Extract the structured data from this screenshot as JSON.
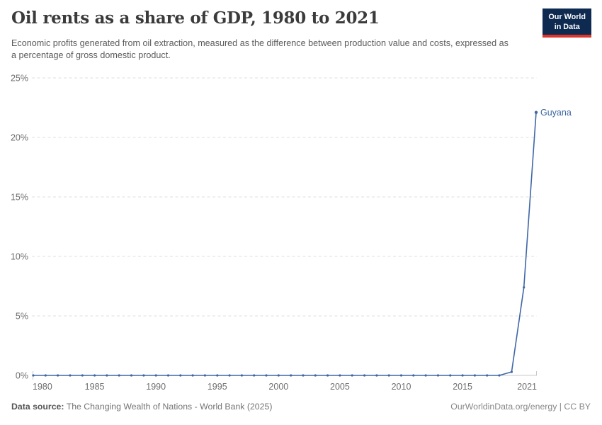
{
  "header": {
    "title": "Oil rents as a share of GDP, 1980 to 2021",
    "subtitle": "Economic profits generated from oil extraction, measured as the difference between production value and costs, expressed as a percentage of gross domestic product."
  },
  "logo": {
    "line1": "Our World",
    "line2": "in Data",
    "bg_color": "#0f2a51",
    "accent_color": "#dc352b"
  },
  "footer": {
    "source_label": "Data source:",
    "source_text": " The Changing Wealth of Nations - World Bank (2025)",
    "credit": "OurWorldinData.org/energy | CC BY"
  },
  "chart_data": {
    "type": "line",
    "title": "Oil rents as a share of GDP, 1980 to 2021",
    "xlabel": "",
    "ylabel": "",
    "x": [
      1980,
      1981,
      1982,
      1983,
      1984,
      1985,
      1986,
      1987,
      1988,
      1989,
      1990,
      1991,
      1992,
      1993,
      1994,
      1995,
      1996,
      1997,
      1998,
      1999,
      2000,
      2001,
      2002,
      2003,
      2004,
      2005,
      2006,
      2007,
      2008,
      2009,
      2010,
      2011,
      2012,
      2013,
      2014,
      2015,
      2016,
      2017,
      2018,
      2019,
      2020,
      2021
    ],
    "series": [
      {
        "name": "Guyana",
        "color": "#3f67a5",
        "label_color": "#3d66a0",
        "values": [
          0,
          0,
          0,
          0,
          0,
          0,
          0,
          0,
          0,
          0,
          0,
          0,
          0,
          0,
          0,
          0,
          0,
          0,
          0,
          0,
          0,
          0,
          0,
          0,
          0,
          0,
          0,
          0,
          0,
          0,
          0,
          0,
          0,
          0,
          0,
          0,
          0,
          0,
          0,
          0.3,
          7.4,
          22.1
        ]
      }
    ],
    "ylim": [
      0,
      25
    ],
    "y_ticks": [
      0,
      5,
      10,
      15,
      20,
      25
    ],
    "y_tick_suffix": "%",
    "x_ticks": [
      1980,
      1985,
      1990,
      1995,
      2000,
      2005,
      2010,
      2015,
      2021
    ],
    "grid": "horizontal-dashed",
    "legend": "line-end-label",
    "grid_color": "#dfdfdf",
    "axis_color": "#c8c8c8",
    "tick_label_color": "#6e6e6e"
  }
}
